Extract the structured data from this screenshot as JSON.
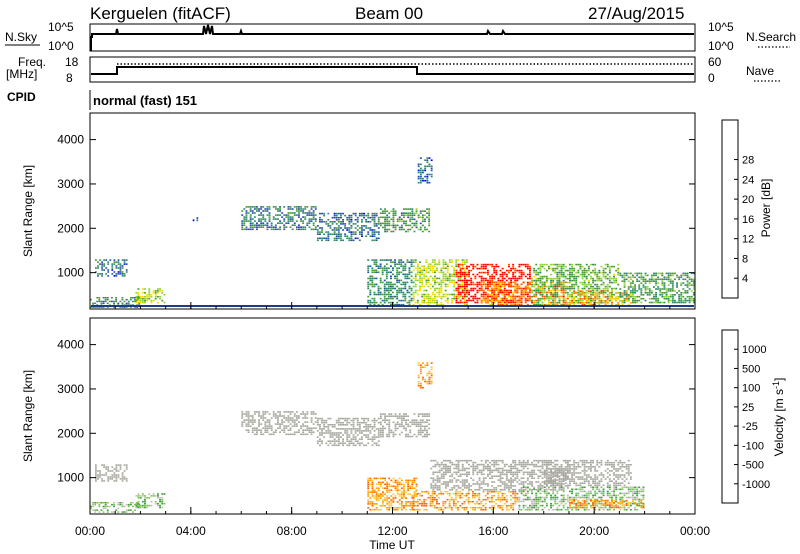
{
  "header": {
    "station": "Kerguelen (fitACF)",
    "beam": "Beam 00",
    "date": "27/Aug/2015"
  },
  "top_panels": {
    "nsky_label": "N.Sky",
    "nsky_ticks": [
      "10^5",
      "10^0"
    ],
    "nsearch_label": "N.Search",
    "nsearch_ticks": [
      "10^5",
      "10^0"
    ],
    "freq_label_1": "Freq.",
    "freq_label_2": "[MHz]",
    "freq_ticks": [
      "18",
      "8"
    ],
    "nave_label": "Nave",
    "nave_ticks": [
      "60",
      "0"
    ],
    "cpid_label": "CPID",
    "cpid_value": "normal (fast) 151"
  },
  "colors": {
    "power": [
      "#0000ff",
      "#2a4fa8",
      "#2d8a6a",
      "#4a9a3a",
      "#8fd23a",
      "#f5d800",
      "#ff9a00",
      "#ff4e00",
      "#ff0000"
    ],
    "velocity": [
      "#ff0000",
      "#ff6a00",
      "#ffa200",
      "#ffc83a",
      "#c0c0b4",
      "#78c850",
      "#44a040",
      "#3b6aaa",
      "#1a3fbf"
    ],
    "ground": "#a8a8a0"
  },
  "chart_data": [
    {
      "type": "heatmap",
      "name": "power",
      "ylabel": "Slant Range [km]",
      "yticks": [
        "1000",
        "2000",
        "3000",
        "4000"
      ],
      "ylim": [
        180,
        4600
      ],
      "xlim": [
        0,
        24
      ],
      "colorbar_label": "Power [dB]",
      "colorbar_ticks": [
        "4",
        "8",
        "12",
        "16",
        "20",
        "24",
        "28"
      ],
      "colorbar_range": [
        0,
        30
      ],
      "regions": [
        {
          "t0": 0.0,
          "t1": 2.0,
          "r0": 200,
          "r1": 450,
          "v": 9
        },
        {
          "t0": 0.2,
          "t1": 1.5,
          "r0": 900,
          "r1": 1300,
          "v": 7
        },
        {
          "t0": 1.8,
          "t1": 3.0,
          "r0": 300,
          "r1": 650,
          "v": 15
        },
        {
          "t0": 4.0,
          "t1": 4.3,
          "r0": 2150,
          "r1": 2250,
          "v": 6
        },
        {
          "t0": 6.0,
          "t1": 9.0,
          "r0": 1950,
          "r1": 2500,
          "v": 8
        },
        {
          "t0": 9.0,
          "t1": 11.5,
          "r0": 1700,
          "r1": 2350,
          "v": 7
        },
        {
          "t0": 11.5,
          "t1": 13.5,
          "r0": 1900,
          "r1": 2450,
          "v": 10
        },
        {
          "t0": 13.0,
          "t1": 13.6,
          "r0": 3000,
          "r1": 3600,
          "v": 6
        },
        {
          "t0": 11.0,
          "t1": 12.8,
          "r0": 250,
          "r1": 1300,
          "v": 9
        },
        {
          "t0": 12.8,
          "t1": 15.0,
          "r0": 250,
          "r1": 1300,
          "v": 16
        },
        {
          "t0": 14.5,
          "t1": 17.5,
          "r0": 300,
          "r1": 1200,
          "v": 29
        },
        {
          "t0": 15.5,
          "t1": 19.0,
          "r0": 250,
          "r1": 800,
          "v": 23
        },
        {
          "t0": 17.5,
          "t1": 21.0,
          "r0": 250,
          "r1": 1200,
          "v": 13
        },
        {
          "t0": 19.0,
          "t1": 21.5,
          "r0": 250,
          "r1": 600,
          "v": 21
        },
        {
          "t0": 21.0,
          "t1": 24.0,
          "r0": 300,
          "r1": 1000,
          "v": 11
        }
      ]
    },
    {
      "type": "heatmap",
      "name": "velocity",
      "ylabel": "Slant Range [km]",
      "xlabel": "Time UT",
      "xticks": [
        "00:00",
        "04:00",
        "08:00",
        "12:00",
        "16:00",
        "20:00",
        "00:00"
      ],
      "yticks": [
        "1000",
        "2000",
        "3000",
        "4000"
      ],
      "ylim": [
        180,
        4600
      ],
      "xlim": [
        0,
        24
      ],
      "colorbar_label": "Velocity [m s^-1]",
      "colorbar_ticks": [
        "-1000",
        "-500",
        "-100",
        "-25",
        "25",
        "100",
        "500",
        "1000"
      ],
      "regions": [
        {
          "t0": 0.0,
          "t1": 2.0,
          "r0": 200,
          "r1": 450,
          "v": "green"
        },
        {
          "t0": 0.2,
          "t1": 1.5,
          "r0": 900,
          "r1": 1300,
          "v": "ground"
        },
        {
          "t0": 1.8,
          "t1": 3.0,
          "r0": 300,
          "r1": 650,
          "v": "green"
        },
        {
          "t0": 6.0,
          "t1": 9.0,
          "r0": 1950,
          "r1": 2500,
          "v": "ground"
        },
        {
          "t0": 9.0,
          "t1": 11.5,
          "r0": 1700,
          "r1": 2350,
          "v": "ground"
        },
        {
          "t0": 11.5,
          "t1": 13.5,
          "r0": 1900,
          "r1": 2450,
          "v": "ground"
        },
        {
          "t0": 13.0,
          "t1": 13.6,
          "r0": 3000,
          "r1": 3600,
          "v": "orange"
        },
        {
          "t0": 11.0,
          "t1": 13.0,
          "r0": 250,
          "r1": 1000,
          "v": "orange"
        },
        {
          "t0": 13.5,
          "t1": 19.0,
          "r0": 700,
          "r1": 1400,
          "v": "ground"
        },
        {
          "t0": 12.8,
          "t1": 17.0,
          "r0": 250,
          "r1": 700,
          "v": "orange"
        },
        {
          "t0": 17.0,
          "t1": 22.0,
          "r0": 250,
          "r1": 800,
          "v": "green"
        },
        {
          "t0": 19.0,
          "t1": 22.0,
          "r0": 300,
          "r1": 500,
          "v": "orange"
        },
        {
          "t0": 18.0,
          "t1": 21.5,
          "r0": 800,
          "r1": 1400,
          "v": "ground"
        }
      ]
    }
  ]
}
